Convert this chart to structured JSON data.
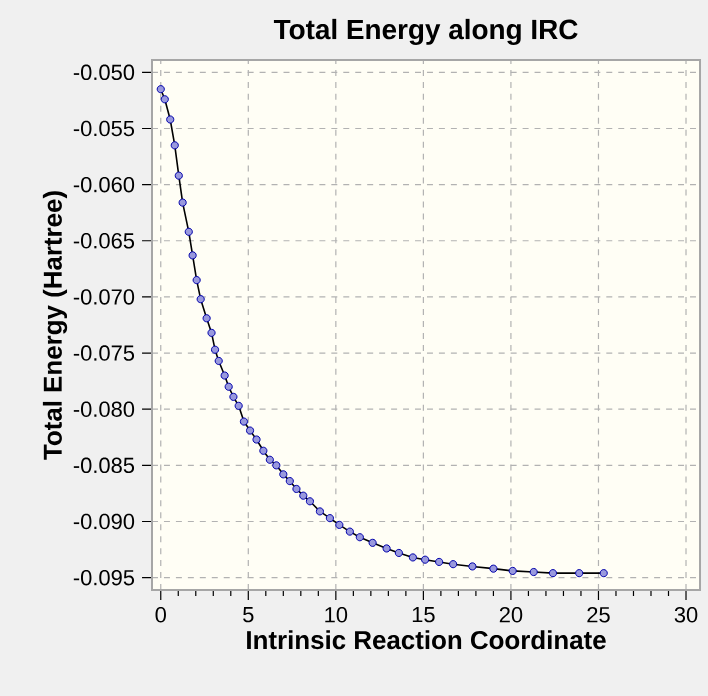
{
  "chart_data": {
    "type": "line",
    "title": "Total Energy along IRC",
    "xlabel": "Intrinsic Reaction Coordinate",
    "ylabel": "Total Energy (Hartree)",
    "xlim": [
      -0.5,
      30.8
    ],
    "ylim": [
      -0.0961,
      -0.0489
    ],
    "xticks": [
      0,
      5,
      10,
      15,
      20,
      25,
      30
    ],
    "yticks": [
      {
        "value": -0.05,
        "label": "-0.050"
      },
      {
        "value": -0.055,
        "label": "-0.055"
      },
      {
        "value": -0.06,
        "label": "-0.060"
      },
      {
        "value": -0.065,
        "label": "-0.065"
      },
      {
        "value": -0.07,
        "label": "-0.070"
      },
      {
        "value": -0.075,
        "label": "-0.075"
      },
      {
        "value": -0.08,
        "label": "-0.080"
      },
      {
        "value": -0.085,
        "label": "-0.085"
      },
      {
        "value": -0.09,
        "label": "-0.090"
      },
      {
        "value": -0.095,
        "label": "-0.095"
      }
    ],
    "grid": true,
    "marker": "circle",
    "line_style": "solid",
    "series": [
      {
        "color": "#0000aa",
        "x": [
          0,
          0.23,
          0.54,
          0.8,
          1.03,
          1.25,
          1.6,
          1.82,
          2.05,
          2.28,
          2.62,
          2.9,
          3.1,
          3.31,
          3.65,
          3.88,
          4.15,
          4.45,
          4.75,
          5.1,
          5.47,
          5.86,
          6.23,
          6.6,
          7.0,
          7.37,
          7.75,
          8.14,
          8.52,
          9.09,
          9.66,
          10.2,
          10.8,
          11.37,
          12.1,
          12.9,
          13.6,
          14.4,
          15.1,
          15.9,
          16.7,
          17.8,
          19.0,
          20.1,
          21.3,
          22.4,
          23.9,
          25.3
        ],
        "values": [
          -0.0515,
          -0.0524,
          -0.0542,
          -0.0565,
          -0.0592,
          -0.0616,
          -0.0642,
          -0.0663,
          -0.0685,
          -0.0702,
          -0.0719,
          -0.0732,
          -0.0747,
          -0.0757,
          -0.077,
          -0.078,
          -0.0789,
          -0.0797,
          -0.0811,
          -0.0819,
          -0.0827,
          -0.0837,
          -0.0845,
          -0.085,
          -0.0858,
          -0.0864,
          -0.0871,
          -0.0877,
          -0.0882,
          -0.0891,
          -0.0897,
          -0.0903,
          -0.0909,
          -0.0914,
          -0.0919,
          -0.0924,
          -0.0928,
          -0.0932,
          -0.0934,
          -0.0936,
          -0.0938,
          -0.094,
          -0.0942,
          -0.0944,
          -0.0945,
          -0.0946,
          -0.0946,
          -0.0946
        ]
      }
    ]
  }
}
